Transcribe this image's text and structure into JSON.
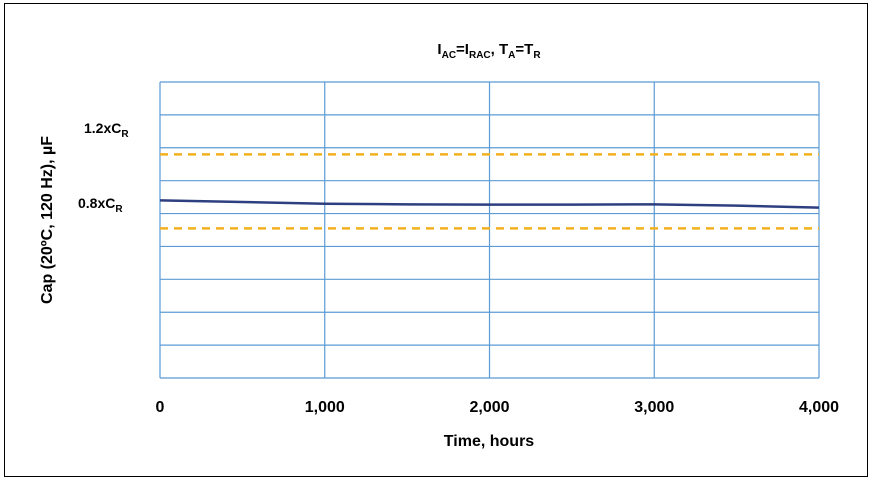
{
  "chart_data": {
    "type": "line",
    "title": {
      "main": "I",
      "sub1": "AC",
      "eq1": "=I",
      "sub2": "RAC",
      "mid": ", T",
      "sub3": "A",
      "eq2": "=T",
      "sub4": "R"
    },
    "xlabel": "Time, hours",
    "ylabel": "Cap (20ºC, 120 Hz), µF",
    "xlim": [
      0,
      4000
    ],
    "ylim": [
      0,
      9
    ],
    "x_ticks": [
      0,
      1000,
      2000,
      3000,
      4000
    ],
    "x_tick_labels": [
      "0",
      "1,000",
      "2,000",
      "3,000",
      "4,000"
    ],
    "grid": true,
    "reference_lines": [
      {
        "label_main": "1.2xC",
        "label_sub": "R",
        "y": 6.8,
        "color": "#f2b01e",
        "style": "dashed"
      },
      {
        "label_main": "0.8xC",
        "label_sub": "R",
        "y": 4.55,
        "color": "#f2b01e",
        "style": "dashed"
      }
    ],
    "series": [
      {
        "color": "#2e3f80",
        "x": [
          0,
          500,
          1000,
          1500,
          2000,
          2500,
          3000,
          3500,
          4000
        ],
        "y": [
          5.4,
          5.35,
          5.3,
          5.28,
          5.27,
          5.27,
          5.28,
          5.24,
          5.18
        ]
      }
    ],
    "grid_color": "#5b9bd5"
  }
}
